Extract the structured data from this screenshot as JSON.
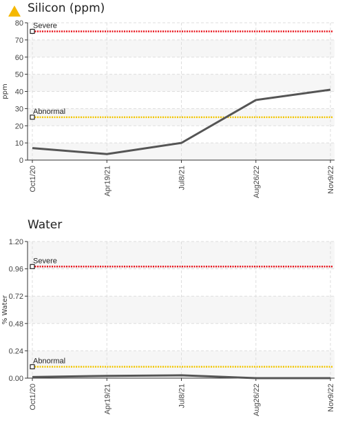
{
  "chart_data": [
    {
      "type": "line",
      "title": "Silicon (ppm)",
      "y_label": "ppm",
      "categories": [
        "Oct1/20",
        "Apr19/21",
        "Jul8/21",
        "Aug26/22",
        "Nov9/22"
      ],
      "values": [
        7,
        3.5,
        10,
        35,
        41
      ],
      "color": "#555555",
      "ylim": [
        0,
        80
      ],
      "yticks": [
        0,
        10,
        20,
        30,
        40,
        50,
        60,
        70,
        80
      ],
      "grid": true,
      "thresholds": [
        {
          "label": "Severe",
          "value": 75,
          "color": "#e8141c"
        },
        {
          "label": "Abnormal",
          "value": 25,
          "color": "#f2c500"
        }
      ]
    },
    {
      "type": "line",
      "title": "Water",
      "y_label": "% Water",
      "categories": [
        "Oct1/20",
        "Apr19/21",
        "Jul8/21",
        "Aug26/22",
        "Nov9/22"
      ],
      "values": [
        0.01,
        0.02,
        0.025,
        0,
        0
      ],
      "color": "#555555",
      "ylim": [
        0,
        1.2
      ],
      "yticks": [
        {
          "value": 0,
          "label": "0.00"
        },
        {
          "value": 0.24,
          "label": "0.24"
        },
        {
          "value": 0.48,
          "label": "0.48"
        },
        {
          "value": 0.72,
          "label": "0.72"
        },
        {
          "value": 0.96,
          "label": "0.96"
        },
        {
          "value": 1.2,
          "label": "1.20"
        }
      ],
      "grid": true,
      "thresholds": [
        {
          "label": "Severe",
          "value": 0.98,
          "color": "#e8141c"
        },
        {
          "label": "Abnormal",
          "value": 0.1,
          "color": "#f2c500"
        }
      ]
    }
  ]
}
